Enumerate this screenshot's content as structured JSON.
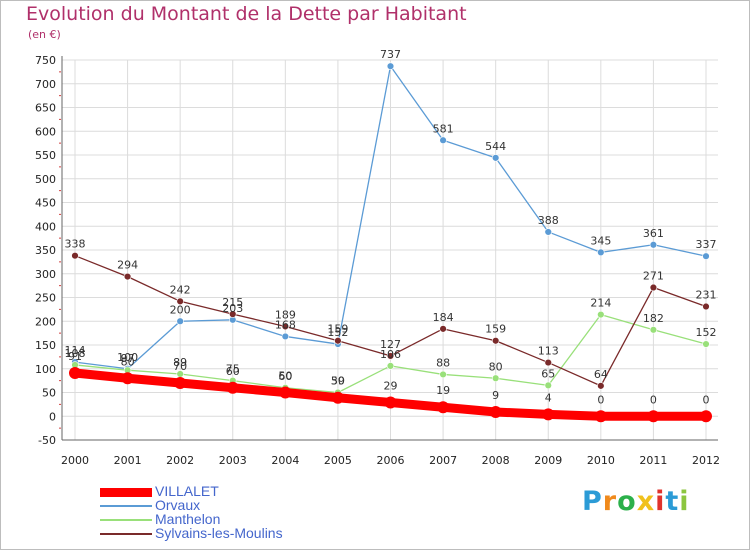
{
  "chart_data": {
    "type": "line",
    "title": "Evolution du Montant de la Dette par Habitant",
    "unit_label": "(en €)",
    "x": [
      "2000",
      "2001",
      "2002",
      "2003",
      "2004",
      "2005",
      "2006",
      "2007",
      "2008",
      "2009",
      "2010",
      "2011",
      "2012"
    ],
    "ylim": [
      -50,
      750
    ],
    "yticks": [
      -50,
      0,
      50,
      100,
      150,
      200,
      250,
      300,
      350,
      400,
      450,
      500,
      550,
      600,
      650,
      700,
      750
    ],
    "grid": true,
    "legend_position": "bottom-left",
    "series": [
      {
        "name": "VILLALET",
        "color": "#ff0000",
        "values": [
          91,
          80,
          70,
          60,
          50,
          39,
          29,
          19,
          9,
          4,
          0,
          0,
          0
        ]
      },
      {
        "name": "Orvaux",
        "color": "#5b9bd5",
        "values": [
          114,
          100,
          200,
          203,
          168,
          152,
          737,
          581,
          544,
          388,
          345,
          361,
          337
        ]
      },
      {
        "name": "Manthelon",
        "color": "#99e07a",
        "values": [
          108,
          97,
          89,
          75,
          60,
          50,
          106,
          88,
          80,
          65,
          214,
          182,
          152
        ]
      },
      {
        "name": "Sylvains-les-Moulins",
        "color": "#7a2a2a",
        "values": [
          338,
          294,
          242,
          215,
          189,
          159,
          127,
          184,
          159,
          113,
          64,
          271,
          231
        ]
      }
    ]
  },
  "logo": {
    "letters": [
      "P",
      "r",
      "o",
      "x",
      "i",
      "t",
      "i"
    ],
    "colors": [
      "#2b9bd6",
      "#f08a1c",
      "#2bb04a",
      "#f0c11c",
      "#e0332c",
      "#2b9bd6",
      "#8cc63f"
    ]
  }
}
